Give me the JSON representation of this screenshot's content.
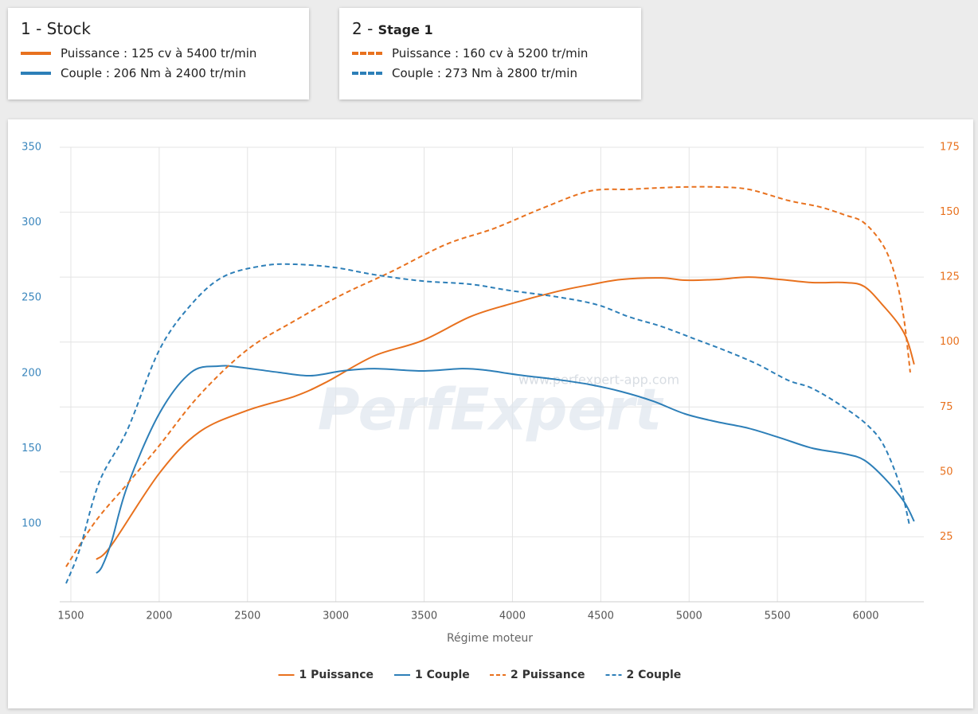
{
  "cards": [
    {
      "title": "1 - Stock",
      "lines": [
        "Puissance : 125 cv à 5400 tr/min",
        "Couple : 206 Nm à 2400 tr/min"
      ]
    },
    {
      "title_prefix": "2 - ",
      "title": "Stage 1",
      "lines": [
        "Puissance : 160 cv à 5200 tr/min",
        "Couple : 273 Nm à 2800 tr/min"
      ]
    }
  ],
  "chart_data": {
    "type": "line",
    "xlabel": "Régime moteur",
    "watermark": "PerfExpert",
    "watermark_url": "www.perfexpert-app.com",
    "xlim": [
      1437,
      6329
    ],
    "xticks": [
      1500,
      2000,
      2500,
      3000,
      3500,
      4000,
      4500,
      5000,
      5500,
      6000
    ],
    "ylim": [
      48.2,
      350
    ],
    "yticks": [
      100,
      150,
      200,
      250,
      300,
      350
    ],
    "y2lim": [
      0,
      175
    ],
    "y2ticks": [
      25,
      50,
      75,
      100,
      125,
      150,
      175
    ],
    "grid": true,
    "series": [
      {
        "name": "1 Puissance",
        "color": "#e8711e",
        "dash": false,
        "axis": "y2",
        "x": [
          1644,
          1730,
          2000,
          2226,
          2496,
          2767,
          2947,
          3218,
          3488,
          3759,
          3984,
          4255,
          4435,
          4615,
          4841,
          4976,
          5156,
          5337,
          5517,
          5697,
          5878,
          5991,
          6103,
          6194,
          6239,
          6274
        ],
        "values": [
          16.3,
          21.8,
          49.4,
          65.3,
          73.6,
          79.1,
          84.6,
          94.7,
          100.5,
          109.7,
          114.6,
          119.5,
          122,
          124.1,
          124.7,
          123.8,
          124.1,
          125,
          124.1,
          122.9,
          122.9,
          121.4,
          113.7,
          106.1,
          99.9,
          91.4
        ]
      },
      {
        "name": "1 Couple",
        "color": "#2d7fb8",
        "dash": false,
        "axis": "y",
        "x": [
          1644,
          1676,
          1730,
          1820,
          2000,
          2180,
          2339,
          2451,
          2677,
          2857,
          3037,
          3218,
          3488,
          3714,
          3849,
          4029,
          4255,
          4435,
          4615,
          4796,
          4976,
          5156,
          5337,
          5517,
          5697,
          5878,
          5991,
          6103,
          6216,
          6274
        ],
        "values": [
          67.2,
          71.5,
          88,
          125,
          173,
          200.5,
          204.7,
          204,
          200.5,
          198.3,
          201.5,
          203,
          201.5,
          203,
          202,
          198.9,
          195.7,
          192.5,
          187.8,
          181.4,
          173,
          167.7,
          163.4,
          157,
          150.2,
          146.5,
          142.3,
          130.7,
          114.8,
          101.6
        ]
      },
      {
        "name": "2 Puissance",
        "color": "#e8711e",
        "dash": true,
        "axis": "y2",
        "x": [
          1473,
          1640,
          1820,
          2000,
          2226,
          2496,
          2767,
          3037,
          3308,
          3624,
          3894,
          4165,
          4435,
          4660,
          4841,
          4976,
          5156,
          5337,
          5562,
          5742,
          5878,
          5991,
          6103,
          6171,
          6216,
          6252
        ],
        "values": [
          13.5,
          31,
          45.4,
          60.1,
          79.4,
          96.9,
          108.2,
          118.3,
          126.9,
          137.6,
          143.7,
          151.4,
          158.1,
          158.8,
          159.4,
          159.7,
          159.7,
          158.8,
          154.5,
          152,
          149,
          145.9,
          136.7,
          124.4,
          109.1,
          88.3
        ]
      },
      {
        "name": "2 Couple",
        "color": "#2d7fb8",
        "dash": true,
        "axis": "y",
        "x": [
          1473,
          1550,
          1662,
          1820,
          2000,
          2180,
          2361,
          2586,
          2767,
          2992,
          3218,
          3488,
          3759,
          3984,
          4255,
          4480,
          4660,
          4841,
          5021,
          5201,
          5382,
          5562,
          5697,
          5878,
          6013,
          6103,
          6194,
          6248
        ],
        "values": [
          60.4,
          83,
          128,
          162.4,
          215.2,
          245.4,
          263.9,
          271.3,
          272.3,
          270.2,
          265.4,
          261.2,
          259.1,
          254.9,
          250.6,
          245.4,
          237.4,
          231.1,
          223.2,
          215.2,
          206.2,
          195.2,
          189.9,
          177.2,
          165.1,
          151.8,
          125.4,
          98.9
        ]
      }
    ]
  }
}
